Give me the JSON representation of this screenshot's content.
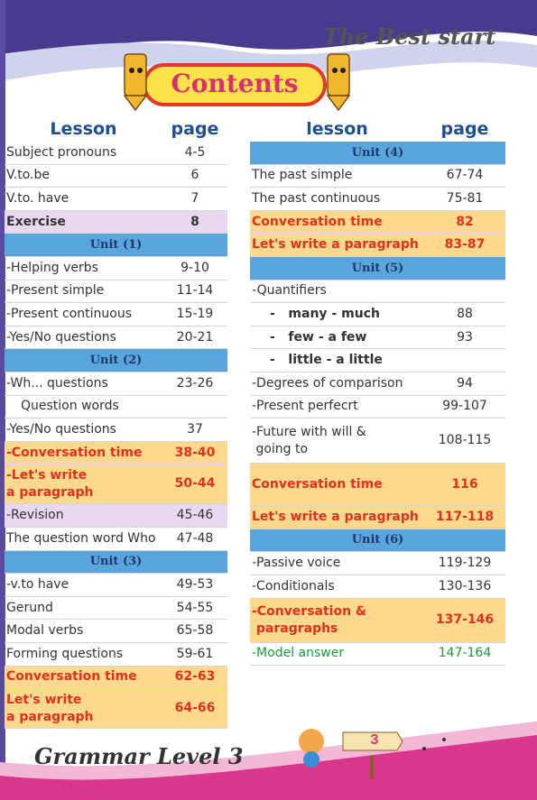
{
  "header": {
    "series": "The Best start",
    "title": "Contents"
  },
  "left_table": {
    "columns": [
      "Lesson",
      "page"
    ],
    "rows": [
      [
        "Subject pronouns",
        "4-5"
      ],
      [
        "V.to.be",
        "6"
      ],
      [
        "V.to. have",
        "7"
      ],
      [
        "Exercise",
        "8"
      ],
      [
        "Unit (1)"
      ],
      [
        "-Helping verbs",
        "9-10"
      ],
      [
        "-Present simple",
        "11-14"
      ],
      [
        "-Present continuous",
        "15-19"
      ],
      [
        "-Yes/No questions",
        "20-21"
      ],
      [
        "Unit (2)"
      ],
      [
        "-Wh... questions",
        "23-26"
      ],
      [
        "Question words"
      ],
      [
        "-Yes/No questions",
        "37"
      ],
      [
        "-Conversation time",
        "38-40"
      ],
      [
        "-Let's write\na paragraph",
        "50-44"
      ],
      [
        "-Revision",
        "45-46"
      ],
      [
        "The question word Who",
        "47-48"
      ],
      [
        "Unit (3)"
      ],
      [
        "-v.to have",
        "49-53"
      ],
      [
        "Gerund",
        "54-55"
      ],
      [
        "Modal verbs",
        "65-58"
      ],
      [
        "Forming questions",
        "59-61"
      ],
      [
        "Conversation time",
        "62-63"
      ],
      [
        "Let's write\na paragraph",
        "64-66"
      ]
    ]
  },
  "right_table": {
    "columns": [
      "lesson",
      "page"
    ],
    "rows": [
      [
        "Unit (4)"
      ],
      [
        "The past simple",
        "67-74"
      ],
      [
        "The past continuous",
        "75-81"
      ],
      [
        "Conversation time",
        "82"
      ],
      [
        "Let's write a paragraph",
        "83-87"
      ],
      [
        "Unit (5)"
      ],
      [
        "-Quantifiers"
      ],
      [
        "-   many - much",
        "88"
      ],
      [
        "-   few - a few",
        "93"
      ],
      [
        "-   little - a little"
      ],
      [
        "-Degrees of comparison",
        "94"
      ],
      [
        "-Present perfecrt",
        "99-107"
      ],
      [
        "-Future with will &\n going to",
        "108-115"
      ],
      [
        "Conversation time",
        "116"
      ],
      [
        "Let's write a paragraph",
        "117-118"
      ],
      [
        "Unit (6)"
      ],
      [
        "-Passive voice",
        "119-129"
      ],
      [
        "-Conditionals",
        "130-136"
      ],
      [
        "-Conversation &\n paragraphs",
        "137-146"
      ],
      [
        "-Model answer",
        "147-164"
      ]
    ]
  },
  "footer": {
    "book": "Grammar Level 3",
    "page_number": "3"
  }
}
